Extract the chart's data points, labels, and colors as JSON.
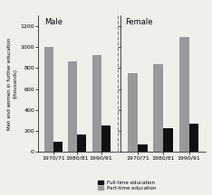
{
  "male_labels": [
    "1970/71",
    "1980/81",
    "1990/91"
  ],
  "female_labels": [
    "1970/71",
    "1980/81",
    "1990/91"
  ],
  "male_fulltime": [
    100,
    170,
    250
  ],
  "male_parttime": [
    1000,
    860,
    920
  ],
  "female_fulltime": [
    70,
    230,
    270
  ],
  "female_parttime": [
    750,
    840,
    1100
  ],
  "ylabel": "Men and women in further education\n(thousands)",
  "ylim": [
    0,
    1300
  ],
  "yticks": [
    0,
    200,
    400,
    600,
    800,
    1000,
    1200
  ],
  "fulltime_color": "#111111",
  "parttime_color": "#999999",
  "background_color": "#f0efea",
  "title_male": "Male",
  "title_female": "Female",
  "legend_fulltime": "Full-time education",
  "legend_parttime": "Part-time education"
}
